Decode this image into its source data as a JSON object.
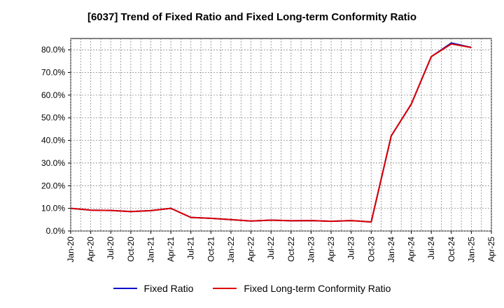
{
  "chart_data": {
    "type": "line",
    "title": "[6037]  Trend of Fixed Ratio and Fixed Long-term Conformity Ratio",
    "xlabel": "",
    "ylabel": "",
    "ylim": [
      0,
      85
    ],
    "yticks": [
      0,
      10,
      20,
      30,
      40,
      50,
      60,
      70,
      80
    ],
    "ytick_labels": [
      "0.0%",
      "10.0%",
      "20.0%",
      "30.0%",
      "40.0%",
      "50.0%",
      "60.0%",
      "70.0%",
      "80.0%"
    ],
    "x": [
      "Jan-20",
      "Apr-20",
      "Jul-20",
      "Oct-20",
      "Jan-21",
      "Apr-21",
      "Jul-21",
      "Oct-21",
      "Jan-22",
      "Apr-22",
      "Jul-22",
      "Oct-22",
      "Jan-23",
      "Apr-23",
      "Jul-23",
      "Oct-23",
      "Jan-24",
      "Apr-24",
      "Jul-24",
      "Oct-24",
      "Jan-25",
      "Apr-25"
    ],
    "grid": true,
    "legend_position": "bottom",
    "series": [
      {
        "name": "Fixed Ratio",
        "color": "#0000cc",
        "values": [
          10.0,
          9.2,
          9.1,
          8.6,
          9.0,
          10.0,
          6.0,
          5.6,
          5.0,
          4.4,
          4.8,
          4.5,
          4.6,
          4.3,
          4.6,
          4.0,
          42.0,
          56.0,
          77.0,
          83.0,
          81.0,
          null
        ]
      },
      {
        "name": "Fixed Long-term Conformity Ratio",
        "color": "#dd0000",
        "values": [
          10.0,
          9.2,
          9.1,
          8.6,
          9.0,
          10.0,
          6.0,
          5.6,
          5.0,
          4.4,
          4.8,
          4.5,
          4.6,
          4.3,
          4.6,
          4.0,
          42.0,
          56.0,
          77.0,
          82.6,
          81.0,
          null
        ]
      }
    ]
  }
}
